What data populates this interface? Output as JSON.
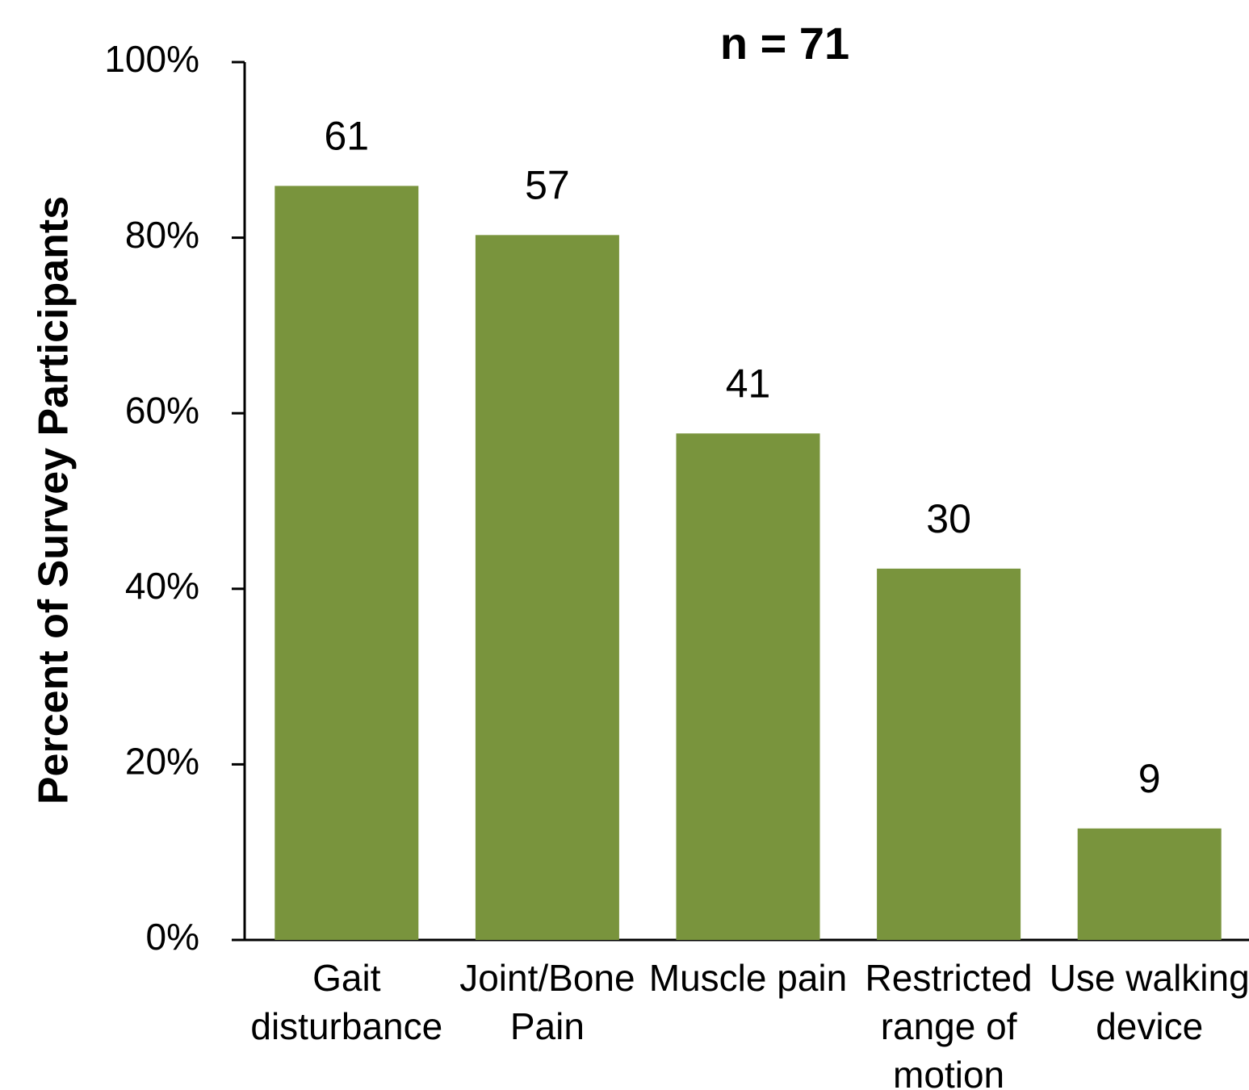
{
  "chart_data": {
    "type": "bar",
    "title": "n = 71",
    "y_label": "Percent of Survey Participants",
    "categories": [
      [
        "Gait",
        "disturbance"
      ],
      [
        "Joint/Bone",
        "Pain"
      ],
      [
        "Muscle pain"
      ],
      [
        "Restricted",
        "range of",
        "motion"
      ],
      [
        "Use walking",
        "device"
      ]
    ],
    "values": [
      85.9,
      80.3,
      57.7,
      42.3,
      12.7
    ],
    "counts": [
      61,
      57,
      41,
      30,
      9
    ],
    "color": "#79943d",
    "ylim": [
      0,
      100
    ],
    "yticks": [
      {
        "value": 0,
        "label": "0%"
      },
      {
        "value": 20,
        "label": "20%"
      },
      {
        "value": 40,
        "label": "40%"
      },
      {
        "value": 60,
        "label": "60%"
      },
      {
        "value": 80,
        "label": "80%"
      },
      {
        "value": 100,
        "label": "100%"
      }
    ],
    "grid": false
  }
}
